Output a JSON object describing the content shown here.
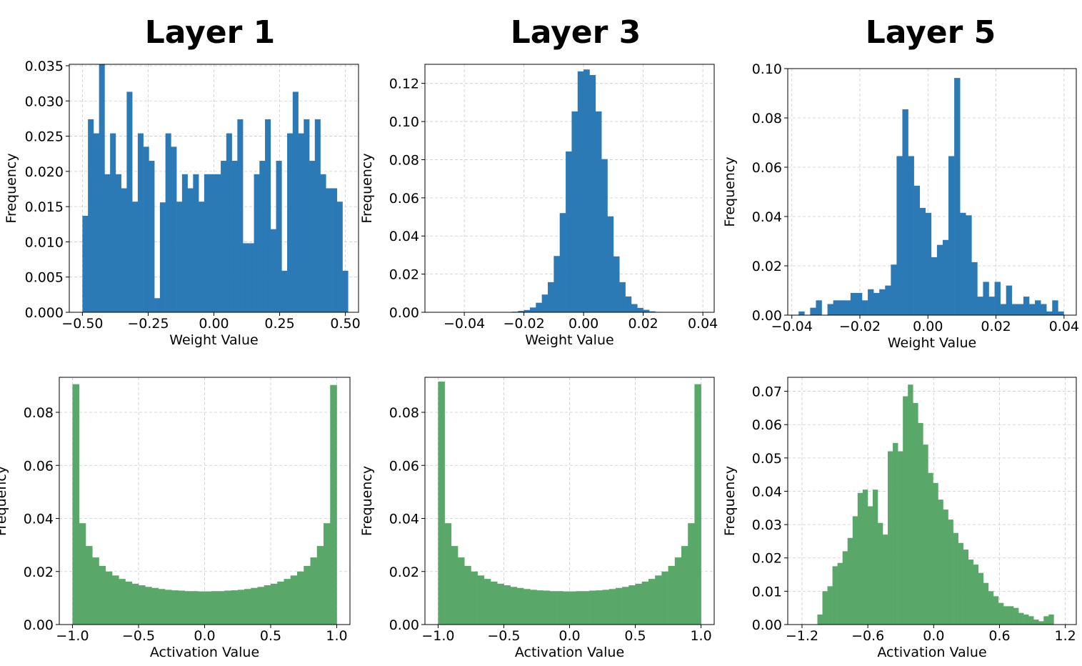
{
  "figure": {
    "column_titles": [
      "Layer 1",
      "Layer 3",
      "Layer 5"
    ]
  },
  "colors": {
    "weight_bars": "#2b79b5",
    "activation_bars": "#59a869"
  },
  "chart_data": [
    {
      "type": "bar",
      "title": "Layer 1",
      "xlabel": "Weight Value",
      "ylabel": "Frequency",
      "color": "#2b79b5",
      "xlim": [
        -0.55,
        0.55
      ],
      "ylim": [
        0,
        0.0352
      ],
      "xticks": [
        -0.5,
        -0.25,
        0.0,
        0.25,
        0.5
      ],
      "xtick_labels": [
        "−0.50",
        "−0.25",
        "0.00",
        "0.25",
        "0.50"
      ],
      "yticks": [
        0,
        0.005,
        0.01,
        0.015,
        0.02,
        0.025,
        0.03,
        0.035
      ],
      "ytick_labels": [
        "0.000",
        "0.005",
        "0.010",
        "0.015",
        "0.020",
        "0.025",
        "0.030",
        "0.035"
      ],
      "bin_range": [
        -0.5,
        0.51
      ],
      "values": [
        0.0137,
        0.0274,
        0.0254,
        0.0352,
        0.0196,
        0.0254,
        0.0196,
        0.0176,
        0.0313,
        0.0157,
        0.0254,
        0.0235,
        0.0215,
        0.002,
        0.0156,
        0.0254,
        0.0235,
        0.0157,
        0.0196,
        0.0176,
        0.0196,
        0.0157,
        0.0196,
        0.0196,
        0.0196,
        0.0215,
        0.0254,
        0.0215,
        0.0274,
        0.0098,
        0.0098,
        0.0196,
        0.0215,
        0.0274,
        0.0118,
        0.0215,
        0.0059,
        0.0254,
        0.0313,
        0.0254,
        0.0274,
        0.0215,
        0.0274,
        0.0196,
        0.0176,
        0.0176,
        0.0157,
        0.0059
      ]
    },
    {
      "type": "bar",
      "title": "Layer 3",
      "xlabel": "Weight Value",
      "ylabel": "Frequency",
      "color": "#2b79b5",
      "xlim": [
        -0.0532,
        0.0438
      ],
      "ylim": [
        0,
        0.13
      ],
      "xticks": [
        -0.04,
        -0.02,
        0.0,
        0.02,
        0.04
      ],
      "xtick_labels": [
        "−0.04",
        "−0.02",
        "0.00",
        "0.02",
        "0.04"
      ],
      "yticks": [
        0,
        0.02,
        0.04,
        0.06,
        0.08,
        0.1,
        0.12
      ],
      "ytick_labels": [
        "0.00",
        "0.02",
        "0.04",
        "0.06",
        "0.08",
        "0.10",
        "0.12"
      ],
      "bin_range": [
        -0.024,
        0.026
      ],
      "values": [
        0.0003,
        0.0007,
        0.0012,
        0.0025,
        0.005,
        0.0093,
        0.0158,
        0.0295,
        0.052,
        0.0843,
        0.1053,
        0.1263,
        0.1273,
        0.1244,
        0.1053,
        0.0803,
        0.0503,
        0.0293,
        0.0158,
        0.0083,
        0.0043,
        0.0023,
        0.0013,
        0.0005,
        0.0002
      ]
    },
    {
      "type": "bar",
      "title": "Layer 5",
      "xlabel": "Weight Value",
      "ylabel": "Frequency",
      "color": "#2b79b5",
      "xlim": [
        -0.0412,
        0.0436
      ],
      "ylim": [
        0,
        0.1
      ],
      "xticks": [
        -0.04,
        -0.02,
        0.0,
        0.02,
        0.04
      ],
      "xtick_labels": [
        "−0.04",
        "−0.02",
        "0.00",
        "0.02",
        "0.04"
      ],
      "yticks": [
        0,
        0.02,
        0.04,
        0.06,
        0.08,
        0.1
      ],
      "ytick_labels": [
        "0.00",
        "0.02",
        "0.04",
        "0.06",
        "0.08",
        "0.10"
      ],
      "bin_range": [
        -0.038,
        0.0416
      ],
      "values": [
        0.0015,
        0.0,
        0.003,
        0.006,
        0.0,
        0.0045,
        0.006,
        0.006,
        0.006,
        0.009,
        0.009,
        0.006,
        0.0105,
        0.009,
        0.0105,
        0.012,
        0.0205,
        0.0645,
        0.0835,
        0.0645,
        0.0525,
        0.0435,
        0.0415,
        0.0235,
        0.0285,
        0.0305,
        0.0645,
        0.0962,
        0.0415,
        0.0405,
        0.0215,
        0.0075,
        0.0135,
        0.0075,
        0.0135,
        0.0045,
        0.012,
        0.0045,
        0.0045,
        0.0075,
        0.0045,
        0.006,
        0.0045,
        0.0015,
        0.006,
        0.0015,
        0.0
      ]
    },
    {
      "type": "bar",
      "title": "",
      "xlabel": "Activation Value",
      "ylabel": "Frequency",
      "color": "#59a869",
      "xlim": [
        -1.1,
        1.1
      ],
      "ylim": [
        0,
        0.0932
      ],
      "xticks": [
        -1.0,
        -0.5,
        0.0,
        0.5,
        1.0
      ],
      "xtick_labels": [
        "−1.0",
        "−0.5",
        "0.0",
        "0.5",
        "1.0"
      ],
      "yticks": [
        0,
        0.02,
        0.04,
        0.06,
        0.08
      ],
      "ytick_labels": [
        "0.00",
        "0.02",
        "0.04",
        "0.06",
        "0.08"
      ],
      "bin_range": [
        -1.0,
        1.0
      ],
      "values": [
        0.0906,
        0.0382,
        0.0296,
        0.0253,
        0.0221,
        0.02,
        0.0185,
        0.0172,
        0.0162,
        0.0154,
        0.0148,
        0.0142,
        0.0138,
        0.0134,
        0.0131,
        0.0129,
        0.0128,
        0.0126,
        0.0126,
        0.0125,
        0.0125,
        0.0126,
        0.0126,
        0.0128,
        0.0129,
        0.0131,
        0.0134,
        0.0138,
        0.0142,
        0.0148,
        0.0154,
        0.0162,
        0.0172,
        0.0185,
        0.02,
        0.0221,
        0.0253,
        0.0296,
        0.0382,
        0.0903
      ]
    },
    {
      "type": "bar",
      "title": "",
      "xlabel": "Activation Value",
      "ylabel": "Frequency",
      "color": "#59a869",
      "xlim": [
        -1.1,
        1.1
      ],
      "ylim": [
        0,
        0.0932
      ],
      "xticks": [
        -1.0,
        -0.5,
        0.0,
        0.5,
        1.0
      ],
      "xtick_labels": [
        "−1.0",
        "−0.5",
        "0.0",
        "0.5",
        "1.0"
      ],
      "yticks": [
        0,
        0.02,
        0.04,
        0.06,
        0.08
      ],
      "ytick_labels": [
        "0.00",
        "0.02",
        "0.04",
        "0.06",
        "0.08"
      ],
      "bin_range": [
        -1.0,
        1.0
      ],
      "values": [
        0.0916,
        0.0382,
        0.0296,
        0.0253,
        0.0221,
        0.02,
        0.0185,
        0.0172,
        0.0162,
        0.0154,
        0.0148,
        0.0142,
        0.0138,
        0.0134,
        0.0131,
        0.0129,
        0.0128,
        0.0126,
        0.0126,
        0.0125,
        0.0125,
        0.0126,
        0.0126,
        0.0128,
        0.0129,
        0.0131,
        0.0134,
        0.0138,
        0.0142,
        0.0148,
        0.0154,
        0.0162,
        0.0172,
        0.0185,
        0.02,
        0.0221,
        0.0253,
        0.0296,
        0.0382,
        0.0906
      ]
    },
    {
      "type": "bar",
      "title": "",
      "xlabel": "Activation Value",
      "ylabel": "Frequency",
      "color": "#59a869",
      "xlim": [
        -1.33,
        1.3
      ],
      "ylim": [
        0,
        0.0742
      ],
      "xticks": [
        -1.2,
        -0.6,
        0.0,
        0.6,
        1.2
      ],
      "xtick_labels": [
        "−1.2",
        "−0.6",
        "0.0",
        "0.6",
        "1.2"
      ],
      "yticks": [
        0,
        0.01,
        0.02,
        0.03,
        0.04,
        0.05,
        0.06,
        0.07
      ],
      "ytick_labels": [
        "0.00",
        "0.01",
        "0.02",
        "0.03",
        "0.04",
        "0.05",
        "0.06",
        "0.07"
      ],
      "bin_range": [
        -1.06,
        1.14
      ],
      "values": [
        0.003,
        0.01,
        0.0115,
        0.0175,
        0.0185,
        0.022,
        0.026,
        0.0325,
        0.0395,
        0.0405,
        0.0355,
        0.0405,
        0.0305,
        0.027,
        0.052,
        0.0545,
        0.052,
        0.0685,
        0.072,
        0.0665,
        0.0605,
        0.054,
        0.0455,
        0.0425,
        0.0375,
        0.0345,
        0.0315,
        0.0275,
        0.0245,
        0.0225,
        0.0195,
        0.018,
        0.0155,
        0.0125,
        0.01,
        0.0085,
        0.0065,
        0.0055,
        0.0055,
        0.005,
        0.0035,
        0.003,
        0.0025,
        0.0015,
        0.001,
        0.0025,
        0.003,
        0.0
      ]
    }
  ]
}
